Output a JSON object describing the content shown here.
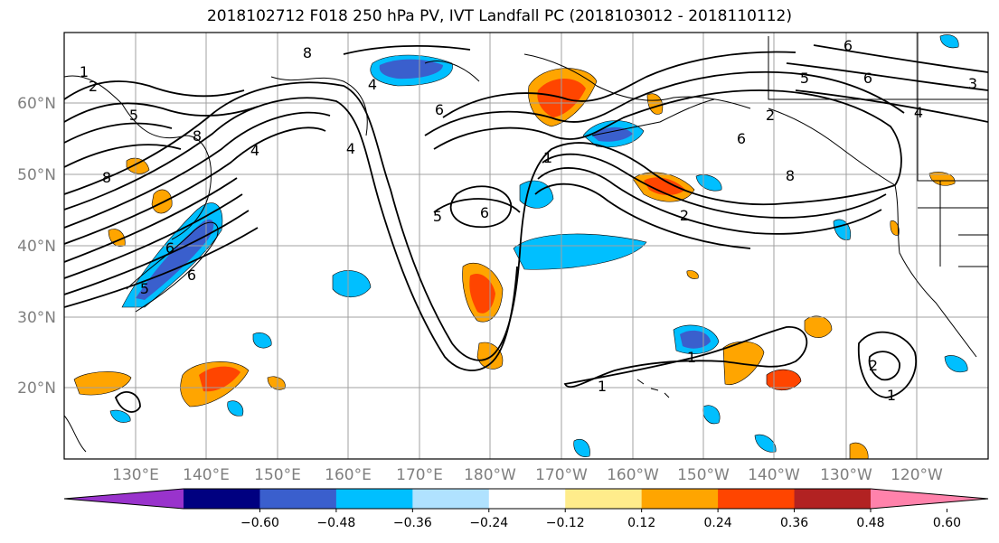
{
  "title": "2018102712 F018 250 hPa PV, IVT Landfall PC (2018103012 - 2018110112)",
  "lat_labels": [
    "60°N",
    "50°N",
    "40°N",
    "30°N",
    "20°N"
  ],
  "lon_labels": [
    "130°E",
    "140°E",
    "150°E",
    "160°E",
    "170°E",
    "180°W",
    "170°W",
    "160°W",
    "150°W",
    "140°W",
    "130°W",
    "120°W"
  ],
  "colorbar": {
    "colors": [
      "#9933cc",
      "#000080",
      "#3a5fcd",
      "#00bfff",
      "#b0e2ff",
      "#ffffff",
      "#ffec8b",
      "#ffa500",
      "#ff4500",
      "#b22222",
      "#ff82ab"
    ],
    "tick_labels": [
      "−0.60",
      "−0.48",
      "−0.36",
      "−0.24",
      "−0.12",
      "0.12",
      "0.24",
      "0.36",
      "0.48",
      "0.60"
    ]
  },
  "contour_labels": [
    "1",
    "2",
    "5",
    "8",
    "6",
    "5",
    "6",
    "4",
    "4",
    "8",
    "8",
    "6",
    "4",
    "1",
    "6",
    "5",
    "2",
    "6",
    "8",
    "5",
    "6",
    "3",
    "6",
    "4",
    "2",
    "1",
    "1",
    "1",
    "2"
  ]
}
